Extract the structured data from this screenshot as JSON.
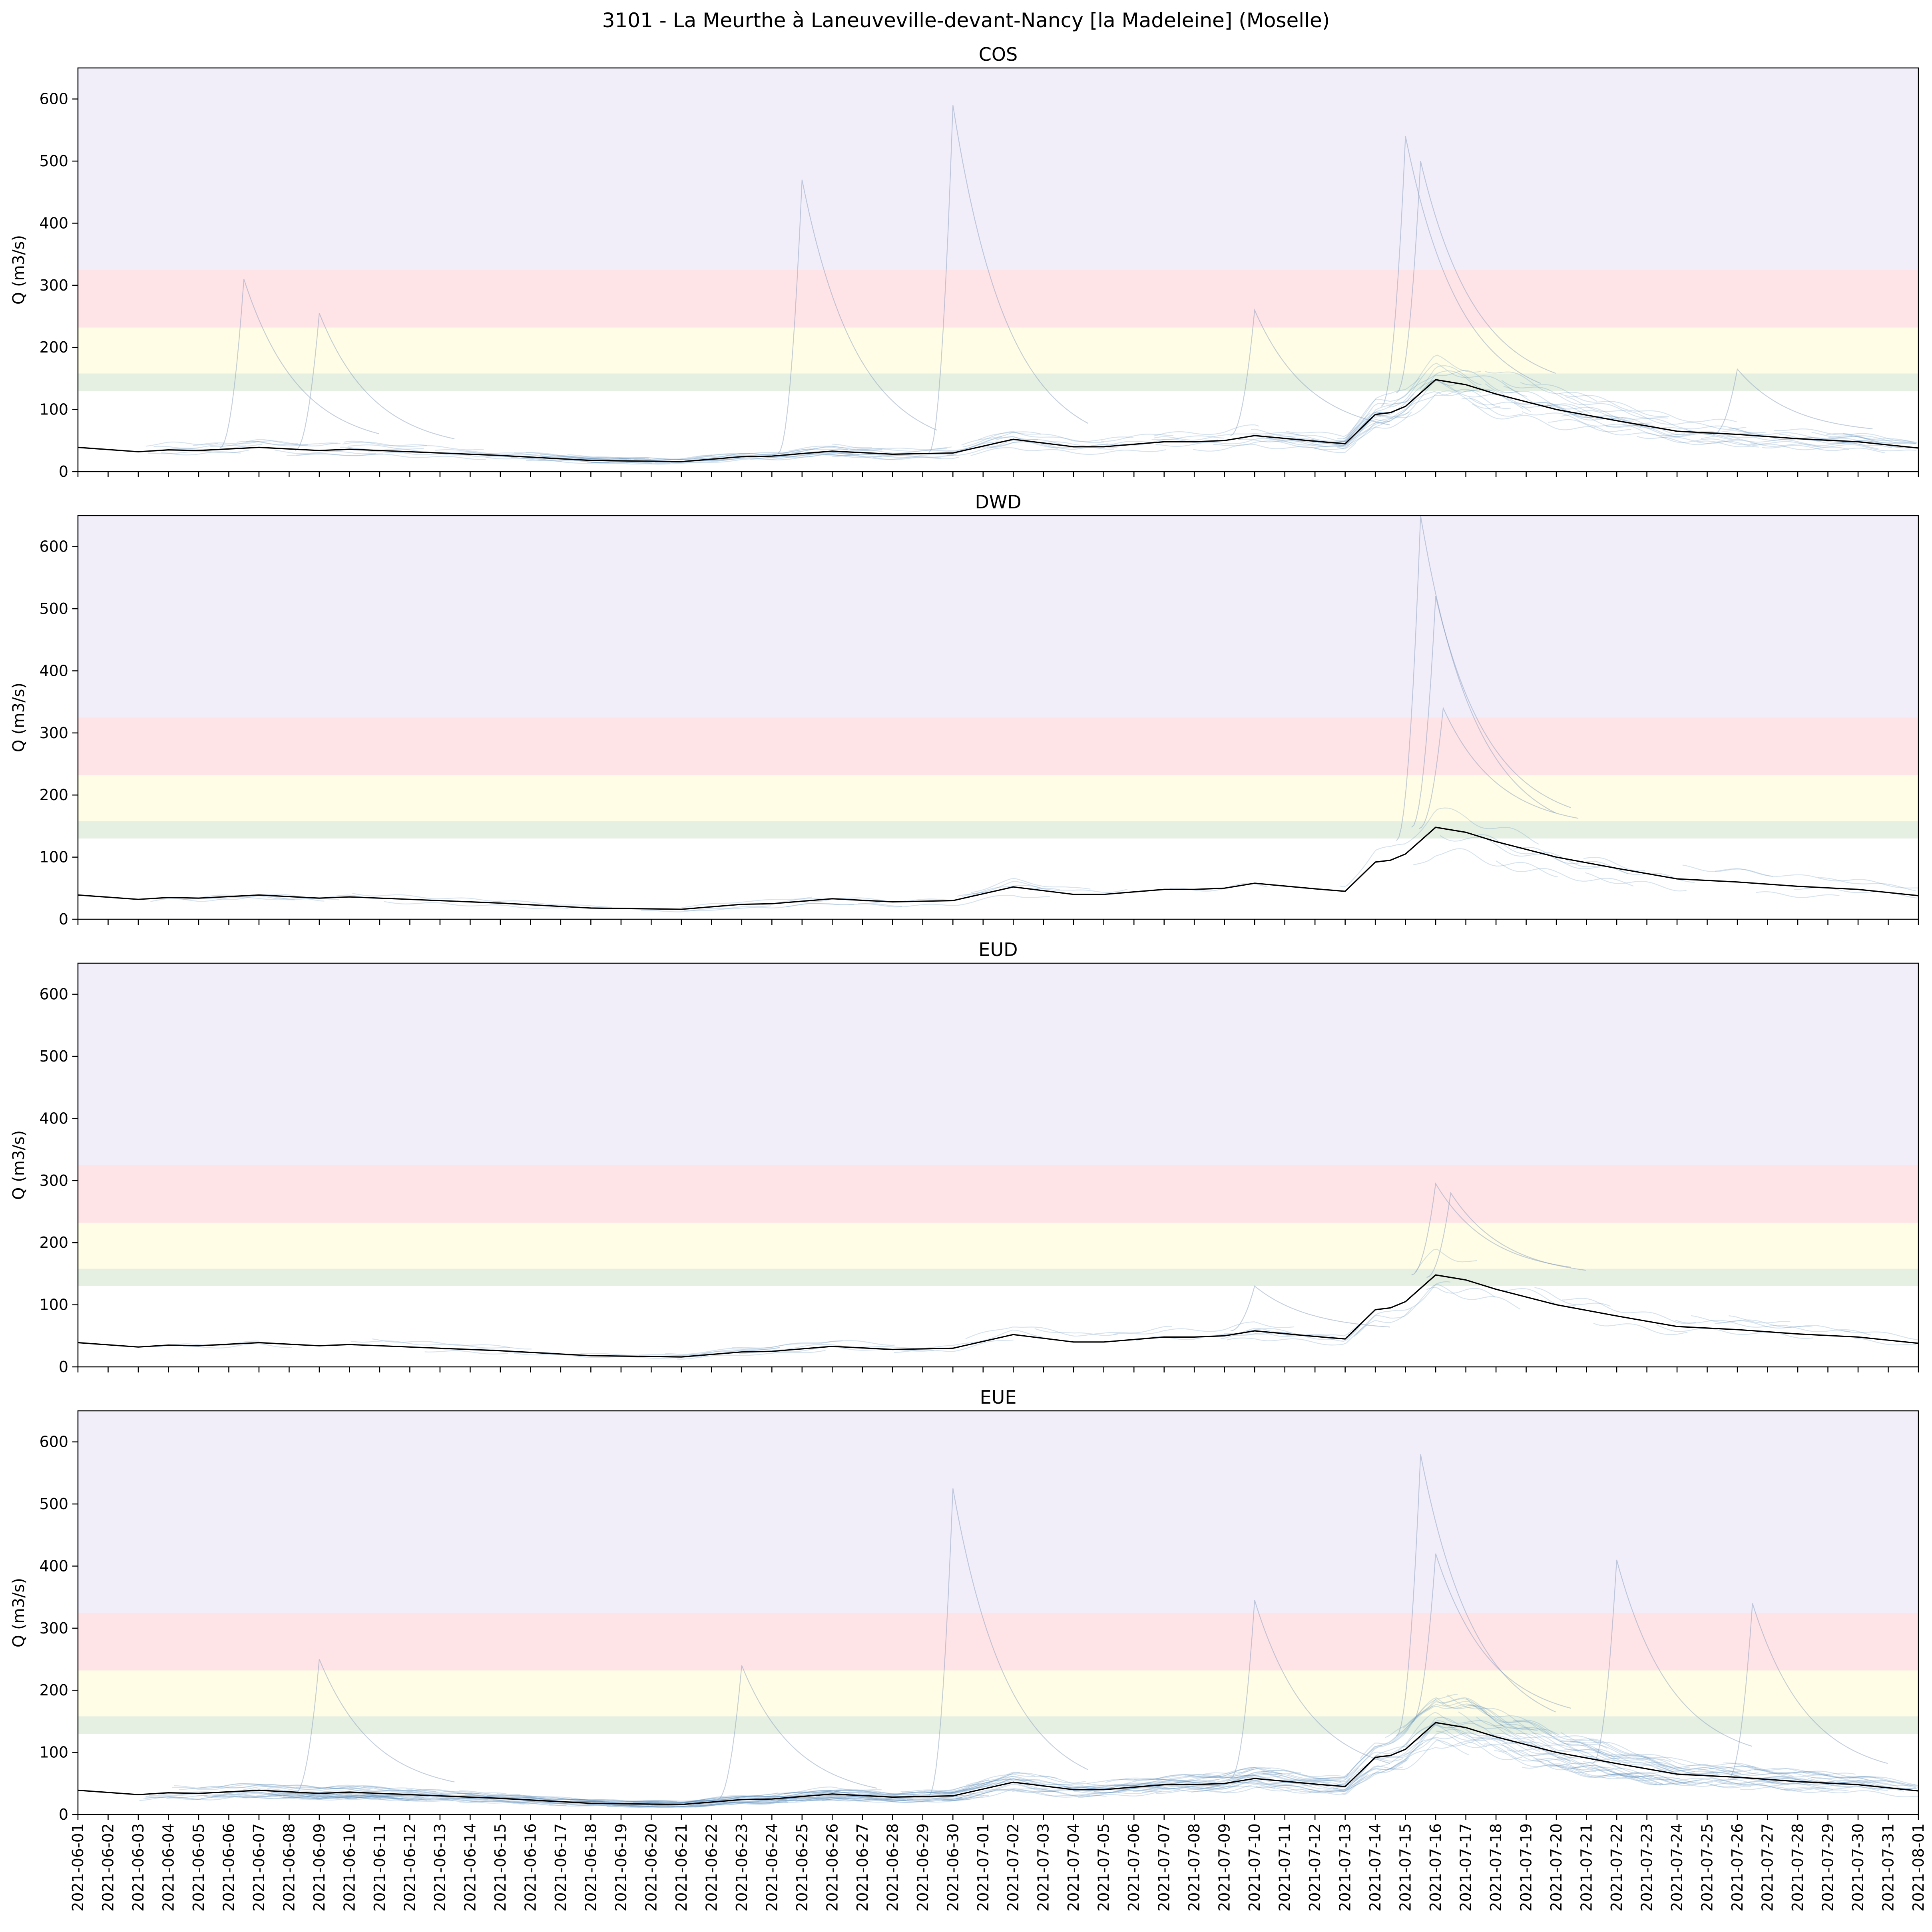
{
  "figure": {
    "title": "3101 - La Meurthe à Laneuveville-devant-Nancy [la Madeleine] (Moselle)"
  },
  "chart_data": {
    "type": "line",
    "shared_ylabel": "Q (m3/s)",
    "ylim": [
      0,
      650
    ],
    "yticks": [
      0,
      100,
      200,
      300,
      400,
      500,
      600
    ],
    "x_range": [
      "2021-06-01",
      "2021-08-01"
    ],
    "xtick_labels": [
      "2021-06-01",
      "2021-06-02",
      "2021-06-03",
      "2021-06-04",
      "2021-06-05",
      "2021-06-06",
      "2021-06-07",
      "2021-06-08",
      "2021-06-09",
      "2021-06-10",
      "2021-06-11",
      "2021-06-12",
      "2021-06-13",
      "2021-06-14",
      "2021-06-15",
      "2021-06-16",
      "2021-06-17",
      "2021-06-18",
      "2021-06-19",
      "2021-06-20",
      "2021-06-21",
      "2021-06-22",
      "2021-06-23",
      "2021-06-24",
      "2021-06-25",
      "2021-06-26",
      "2021-06-27",
      "2021-06-28",
      "2021-06-29",
      "2021-06-30",
      "2021-07-01",
      "2021-07-02",
      "2021-07-03",
      "2021-07-04",
      "2021-07-05",
      "2021-07-06",
      "2021-07-07",
      "2021-07-08",
      "2021-07-09",
      "2021-07-10",
      "2021-07-11",
      "2021-07-12",
      "2021-07-13",
      "2021-07-14",
      "2021-07-15",
      "2021-07-16",
      "2021-07-17",
      "2021-07-18",
      "2021-07-19",
      "2021-07-20",
      "2021-07-21",
      "2021-07-22",
      "2021-07-23",
      "2021-07-24",
      "2021-07-25",
      "2021-07-26",
      "2021-07-27",
      "2021-07-28",
      "2021-07-29",
      "2021-07-30",
      "2021-07-31",
      "2021-08-01"
    ],
    "threshold_bands": [
      {
        "from": 130,
        "to": 158,
        "color": "#e5f0e3"
      },
      {
        "from": 158,
        "to": 232,
        "color": "#fffde6"
      },
      {
        "from": 232,
        "to": 325,
        "color": "#ffe4e7"
      },
      {
        "from": 325,
        "to": 650,
        "color": "#f1eefa"
      }
    ],
    "observed": {
      "color": "#000000",
      "dates": [
        "2021-06-01",
        "2021-06-03",
        "2021-06-04",
        "2021-06-05",
        "2021-06-07",
        "2021-06-09",
        "2021-06-10",
        "2021-06-12",
        "2021-06-15",
        "2021-06-18",
        "2021-06-21",
        "2021-06-23",
        "2021-06-24",
        "2021-06-26",
        "2021-06-28",
        "2021-06-30",
        "2021-07-02",
        "2021-07-04",
        "2021-07-05",
        "2021-07-07",
        "2021-07-08",
        "2021-07-09",
        "2021-07-10",
        "2021-07-12",
        "2021-07-13",
        "2021-07-14",
        "2021-07-14T12:00",
        "2021-07-15",
        "2021-07-16",
        "2021-07-17",
        "2021-07-18",
        "2021-07-20",
        "2021-07-22",
        "2021-07-24",
        "2021-07-26",
        "2021-07-28",
        "2021-07-30",
        "2021-08-01"
      ],
      "values": [
        39,
        32,
        35,
        34,
        39,
        34,
        36,
        32,
        26,
        18,
        16,
        24,
        25,
        33,
        28,
        30,
        52,
        40,
        40,
        48,
        48,
        50,
        58,
        49,
        45,
        92,
        95,
        105,
        148,
        140,
        125,
        100,
        82,
        65,
        60,
        53,
        48,
        38
      ]
    },
    "ensemble_color": "#4a7fb0",
    "panels": [
      {
        "title": "COS",
        "density": 140,
        "spikes": [
          {
            "date": "2021-06-06T12:00",
            "peak": 310
          },
          {
            "date": "2021-06-09",
            "peak": 255
          },
          {
            "date": "2021-06-25",
            "peak": 470
          },
          {
            "date": "2021-06-30",
            "peak": 590
          },
          {
            "date": "2021-07-15",
            "peak": 540
          },
          {
            "date": "2021-07-15T12:00",
            "peak": 500
          },
          {
            "date": "2021-07-10",
            "peak": 260
          },
          {
            "date": "2021-07-26",
            "peak": 165
          }
        ]
      },
      {
        "title": "DWD",
        "density": 32,
        "spikes": [
          {
            "date": "2021-07-15T12:00",
            "peak": 650
          },
          {
            "date": "2021-07-16",
            "peak": 520
          },
          {
            "date": "2021-07-16T06:00",
            "peak": 340
          }
        ]
      },
      {
        "title": "EUD",
        "density": 40,
        "spikes": [
          {
            "date": "2021-07-10",
            "peak": 130
          },
          {
            "date": "2021-07-16",
            "peak": 295
          },
          {
            "date": "2021-07-16T12:00",
            "peak": 280
          }
        ]
      },
      {
        "title": "EUE",
        "density": 300,
        "spikes": [
          {
            "date": "2021-06-09",
            "peak": 250
          },
          {
            "date": "2021-06-23",
            "peak": 240
          },
          {
            "date": "2021-06-30",
            "peak": 525
          },
          {
            "date": "2021-07-10",
            "peak": 345
          },
          {
            "date": "2021-07-15T12:00",
            "peak": 580
          },
          {
            "date": "2021-07-16",
            "peak": 420
          },
          {
            "date": "2021-07-22",
            "peak": 410
          },
          {
            "date": "2021-07-26T12:00",
            "peak": 340
          }
        ]
      }
    ]
  }
}
